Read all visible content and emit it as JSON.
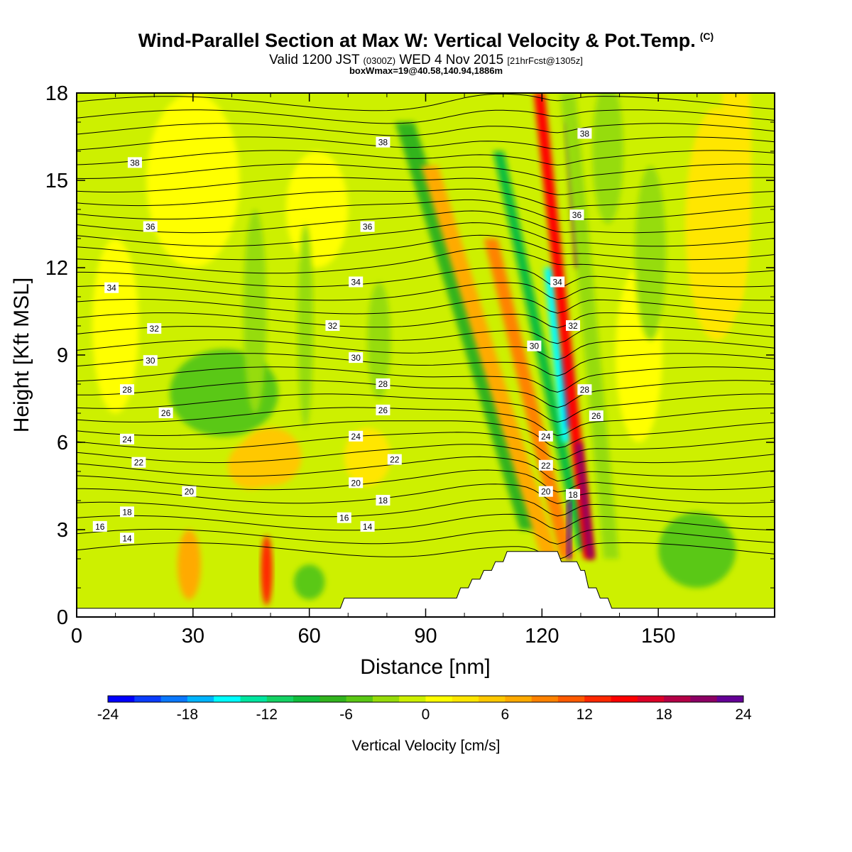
{
  "header": {
    "title": "Wind-Parallel Section at Max W: Vertical Velocity & Pot.Temp.",
    "copyright_mark": "(C)",
    "valid_prefix": "Valid 1200 JST",
    "valid_zulu": "(0300Z)",
    "valid_date": "WED 4 Nov 2015",
    "forecast_info": "[21hrFcst@1305z]",
    "box_info": "boxWmax=19@40.58,140.94,1886m"
  },
  "chart_data": {
    "type": "heatmap",
    "xlabel": "Distance [nm]",
    "ylabel": "Height [Kft MSL]",
    "xlim": [
      0,
      180
    ],
    "ylim": [
      0,
      18
    ],
    "x_ticks": [
      0,
      30,
      60,
      90,
      120,
      150
    ],
    "y_ticks": [
      0,
      3,
      6,
      9,
      12,
      15,
      18
    ],
    "colorbar": {
      "label": "Vertical Velocity [cm/s]",
      "ticks": [
        -24,
        -18,
        -12,
        -6,
        0,
        6,
        12,
        18,
        24
      ],
      "range": [
        -24,
        24
      ],
      "colors": [
        "#0000ff",
        "#0a3cff",
        "#0a78ff",
        "#00b4ff",
        "#00ffff",
        "#00e6a0",
        "#14d264",
        "#10be3c",
        "#32b41e",
        "#5ac814",
        "#96dc0a",
        "#cdf000",
        "#ffff00",
        "#ffe600",
        "#ffc800",
        "#ffaa00",
        "#ff8200",
        "#ff5a00",
        "#ff2800",
        "#ff0000",
        "#dc0028",
        "#b40046",
        "#8c0064",
        "#640096"
      ]
    },
    "theta_contours_C": [
      14,
      16,
      18,
      20,
      22,
      24,
      26,
      28,
      30,
      32,
      34,
      36,
      38
    ],
    "theta_labels": [
      {
        "v": "38",
        "x": 15,
        "y": 15.6
      },
      {
        "v": "38",
        "x": 79,
        "y": 16.3
      },
      {
        "v": "38",
        "x": 131,
        "y": 16.6
      },
      {
        "v": "36",
        "x": 19,
        "y": 13.4
      },
      {
        "v": "36",
        "x": 75,
        "y": 13.4
      },
      {
        "v": "36",
        "x": 129,
        "y": 13.8
      },
      {
        "v": "34",
        "x": 9,
        "y": 11.3
      },
      {
        "v": "34",
        "x": 72,
        "y": 11.5
      },
      {
        "v": "34",
        "x": 124,
        "y": 11.5
      },
      {
        "v": "32",
        "x": 20,
        "y": 9.9
      },
      {
        "v": "32",
        "x": 66,
        "y": 10.0
      },
      {
        "v": "32",
        "x": 128,
        "y": 10.0
      },
      {
        "v": "30",
        "x": 19,
        "y": 8.8
      },
      {
        "v": "30",
        "x": 72,
        "y": 8.9
      },
      {
        "v": "30",
        "x": 118,
        "y": 9.3
      },
      {
        "v": "28",
        "x": 13,
        "y": 7.8
      },
      {
        "v": "28",
        "x": 79,
        "y": 8.0
      },
      {
        "v": "28",
        "x": 131,
        "y": 7.8
      },
      {
        "v": "26",
        "x": 23,
        "y": 7.0
      },
      {
        "v": "26",
        "x": 79,
        "y": 7.1
      },
      {
        "v": "26",
        "x": 134,
        "y": 6.9
      },
      {
        "v": "24",
        "x": 13,
        "y": 6.1
      },
      {
        "v": "24",
        "x": 72,
        "y": 6.2
      },
      {
        "v": "24",
        "x": 121,
        "y": 6.2
      },
      {
        "v": "22",
        "x": 16,
        "y": 5.3
      },
      {
        "v": "22",
        "x": 82,
        "y": 5.4
      },
      {
        "v": "22",
        "x": 121,
        "y": 5.2
      },
      {
        "v": "20",
        "x": 29,
        "y": 4.3
      },
      {
        "v": "20",
        "x": 72,
        "y": 4.6
      },
      {
        "v": "20",
        "x": 121,
        "y": 4.3
      },
      {
        "v": "18",
        "x": 13,
        "y": 3.6
      },
      {
        "v": "18",
        "x": 79,
        "y": 4.0
      },
      {
        "v": "18",
        "x": 128,
        "y": 4.2
      },
      {
        "v": "16",
        "x": 6,
        "y": 3.1
      },
      {
        "v": "16",
        "x": 69,
        "y": 3.4
      },
      {
        "v": "14",
        "x": 13,
        "y": 2.7
      },
      {
        "v": "14",
        "x": 75,
        "y": 3.1
      }
    ],
    "terrain_nm_kft": [
      [
        0,
        0.3
      ],
      [
        68,
        0.3
      ],
      [
        69,
        0.65
      ],
      [
        98,
        0.65
      ],
      [
        99,
        1.0
      ],
      [
        101,
        1.0
      ],
      [
        102,
        1.3
      ],
      [
        104,
        1.3
      ],
      [
        105,
        1.6
      ],
      [
        107,
        1.6
      ],
      [
        108,
        1.9
      ],
      [
        110,
        1.9
      ],
      [
        111,
        2.25
      ],
      [
        124,
        2.25
      ],
      [
        125,
        1.9
      ],
      [
        129,
        1.9
      ],
      [
        130,
        1.6
      ],
      [
        131,
        1.6
      ],
      [
        132,
        1.0
      ],
      [
        134,
        1.0
      ],
      [
        135,
        0.65
      ],
      [
        137,
        0.65
      ],
      [
        138,
        0.3
      ],
      [
        180,
        0.3
      ]
    ]
  }
}
